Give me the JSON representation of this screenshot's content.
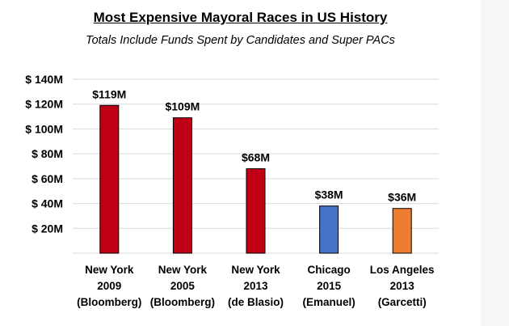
{
  "chart_data": {
    "type": "bar",
    "title": "Most Expensive Mayoral Races in US History",
    "subtitle": "Totals Include Funds Spent by Candidates and Super PACs",
    "xlabel": "",
    "ylabel": "",
    "ylim": [
      0,
      140
    ],
    "grid": true,
    "yticks": [
      20,
      40,
      60,
      80,
      100,
      120,
      140
    ],
    "ytick_labels": [
      "$ 20M",
      "$ 40M",
      "$ 60M",
      "$ 80M",
      "$ 100M",
      "$ 120M",
      "$ 140M"
    ],
    "categories": [
      [
        "New York",
        "2009",
        "(Bloomberg)"
      ],
      [
        "New York",
        "2005",
        "(Bloomberg)"
      ],
      [
        "New York",
        "2013",
        "(de Blasio)"
      ],
      [
        "Chicago",
        "2015",
        "(Emanuel)"
      ],
      [
        "Los Angeles",
        "2013",
        "(Garcetti)"
      ]
    ],
    "values": [
      119,
      109,
      68,
      38,
      36
    ],
    "data_labels": [
      "$119M",
      "$109M",
      "$68M",
      "$38M",
      "$36M"
    ],
    "colors": [
      "#c00014",
      "#c00014",
      "#c00014",
      "#4472c4",
      "#ed7d31"
    ]
  }
}
